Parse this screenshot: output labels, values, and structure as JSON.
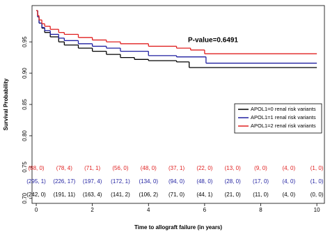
{
  "chart_data": {
    "type": "step",
    "annotation": "P-value=0.6491",
    "xlabel": "Time to allograft failure (in years)",
    "ylabel": "Survival Probability",
    "xlim": [
      -0.15,
      10.27
    ],
    "ylim": [
      0.692,
      1.008
    ],
    "xticks": [
      0,
      2,
      4,
      6,
      8,
      10
    ],
    "yticks": [
      {
        "value": 0.7,
        "label": "0.70"
      },
      {
        "value": 0.75,
        "label": "0.75"
      },
      {
        "value": 0.8,
        "label": "0.80"
      },
      {
        "value": 0.85,
        "label": "0.85"
      },
      {
        "value": 0.9,
        "label": "0.90"
      },
      {
        "value": 0.95,
        "label": "0.95"
      }
    ],
    "risk_times": [
      0,
      1,
      2,
      3,
      4,
      5,
      6,
      7,
      8,
      9,
      10
    ],
    "series": [
      {
        "name": "APOL1=0 renal risk variants",
        "color": "#000000",
        "x": [
          0,
          0.05,
          0.1,
          0.2,
          0.3,
          0.5,
          0.8,
          1,
          1.5,
          2,
          2.5,
          3,
          3.5,
          4,
          5,
          5.45,
          10
        ],
        "y": [
          1.0,
          0.99,
          0.98,
          0.972,
          0.965,
          0.958,
          0.95,
          0.945,
          0.94,
          0.935,
          0.93,
          0.925,
          0.922,
          0.92,
          0.918,
          0.909,
          0.909
        ],
        "at_risk": [
          "(242, 0)",
          "(191, 11)",
          "(163, 4)",
          "(141, 2)",
          "(106, 2)",
          "(71, 0)",
          "(44, 1)",
          "(21, 0)",
          "(11, 0)",
          "(4, 0)",
          "(0, 0)"
        ]
      },
      {
        "name": "APOL1=1 renal risk variants",
        "color": "#1f1fa0",
        "x": [
          0,
          0.05,
          0.1,
          0.2,
          0.3,
          0.5,
          0.8,
          1,
          1.5,
          2,
          2.5,
          3,
          4,
          5,
          6.05,
          10
        ],
        "y": [
          1.0,
          0.99,
          0.98,
          0.973,
          0.968,
          0.962,
          0.956,
          0.952,
          0.947,
          0.943,
          0.94,
          0.935,
          0.928,
          0.926,
          0.916,
          0.916
        ],
        "at_risk": [
          "(295, 1)",
          "(226, 17)",
          "(197, 4)",
          "(172, 1)",
          "(134, 0)",
          "(94, 0)",
          "(48, 0)",
          "(28, 0)",
          "(17, 0)",
          "(4, 0)",
          "(1, 0)"
        ]
      },
      {
        "name": "APOL1=2 renal risk variants",
        "color": "#e02020",
        "x": [
          0,
          0.05,
          0.1,
          0.2,
          0.3,
          0.5,
          0.8,
          1,
          1.5,
          2,
          2.5,
          3,
          4,
          5,
          5.5,
          6,
          10
        ],
        "y": [
          1.0,
          0.992,
          0.985,
          0.979,
          0.975,
          0.97,
          0.965,
          0.962,
          0.957,
          0.953,
          0.95,
          0.947,
          0.943,
          0.94,
          0.937,
          0.931,
          0.931
        ],
        "at_risk": [
          "(88, 0)",
          "(78, 4)",
          "(71, 1)",
          "(56, 0)",
          "(48, 0)",
          "(37, 1)",
          "(22, 0)",
          "(13, 0)",
          "(9, 0)",
          "(4, 0)",
          "(1, 0)"
        ]
      }
    ]
  }
}
